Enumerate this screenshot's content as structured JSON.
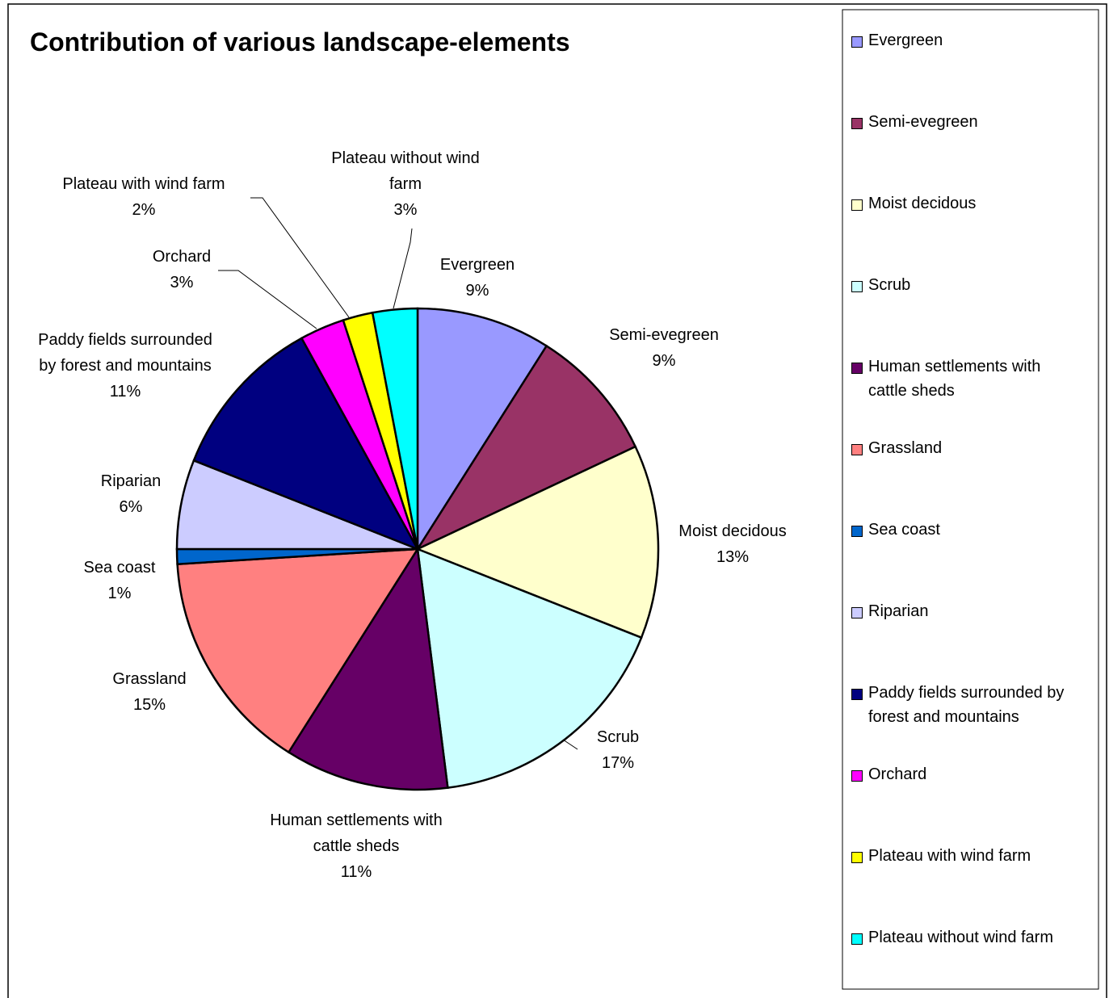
{
  "chart_data": {
    "type": "pie",
    "title": "Contribution of various landscape-elements",
    "categories": [
      "Evergreen",
      "Semi-evegreen",
      "Moist decidous",
      "Scrub",
      "Human settlements with cattle sheds",
      "Grassland",
      "Sea coast",
      "Riparian",
      "Paddy fields surrounded by forest and mountains",
      "Orchard",
      "Plateau with wind farm",
      "Plateau without wind farm"
    ],
    "values": [
      9,
      9,
      13,
      17,
      11,
      15,
      1,
      6,
      11,
      3,
      2,
      3
    ],
    "value_labels": [
      "9%",
      "9%",
      "13%",
      "17%",
      "11%",
      "15%",
      "1%",
      "6%",
      "11%",
      "3%",
      "2%",
      "3%"
    ],
    "colors": [
      "#9999ff",
      "#993366",
      "#ffffcc",
      "#ccffff",
      "#660066",
      "#ff8080",
      "#0066cc",
      "#ccccff",
      "#000080",
      "#ff00ff",
      "#ffff00",
      "#00ffff"
    ],
    "legend": "right"
  }
}
